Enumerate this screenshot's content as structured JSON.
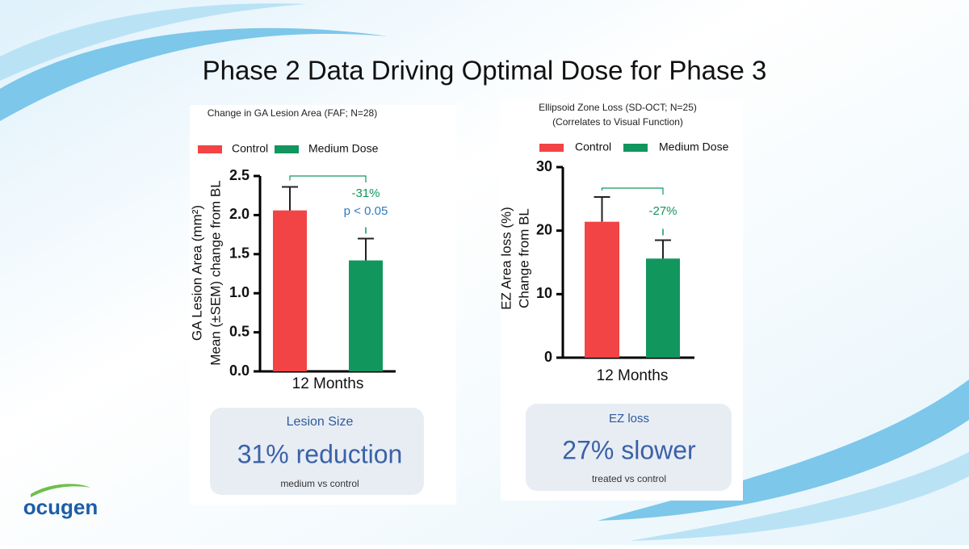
{
  "title": "Phase 2 Data Driving Optimal Dose for Phase 3",
  "chart_data": [
    {
      "type": "bar",
      "title": [
        "Change in GA Lesion Area (FAF; N=28)"
      ],
      "y_label": [
        "GA Lesion Area (mm²)",
        "Mean (±SEM) change from BL"
      ],
      "categories": [
        "12 Months"
      ],
      "series": [
        {
          "name": "Control",
          "color": "#f24444",
          "values": [
            2.06
          ],
          "errors": [
            0.3
          ]
        },
        {
          "name": "Medium Dose",
          "color": "#11965e",
          "values": [
            1.42
          ],
          "errors": [
            0.28
          ]
        }
      ],
      "ylim": [
        0,
        2.5
      ],
      "yticks": [
        {
          "value": 0,
          "label": "0.0"
        },
        0.5,
        {
          "value": 1,
          "label": "1.0"
        },
        1.5,
        {
          "value": 2,
          "label": "2.0"
        },
        2.5
      ],
      "annotations": [
        "-31%",
        "p < 0.05"
      ]
    },
    {
      "type": "bar",
      "title": [
        "Ellipsoid Zone Loss (SD-OCT; N=25)",
        "(Correlates to Visual Function)"
      ],
      "y_label": [
        "EZ Area loss (%)",
        "Change  from BL"
      ],
      "categories": [
        "12 Months"
      ],
      "series": [
        {
          "name": "Control",
          "color": "#f24444",
          "values": [
            21.4
          ],
          "errors": [
            3.9
          ]
        },
        {
          "name": "Medium Dose",
          "color": "#11965e",
          "values": [
            15.6
          ],
          "errors": [
            2.9
          ]
        }
      ],
      "ylim": [
        0,
        30
      ],
      "yticks": [
        0,
        10,
        20,
        30
      ],
      "annotations": [
        "-27%"
      ]
    }
  ],
  "summaries": [
    {
      "heading": "Lesion Size",
      "value": "31% reduction",
      "note": "medium vs  control"
    },
    {
      "heading": "EZ loss",
      "value": "27% slower",
      "note": "treated vs control"
    }
  ],
  "logo": "ocugen"
}
